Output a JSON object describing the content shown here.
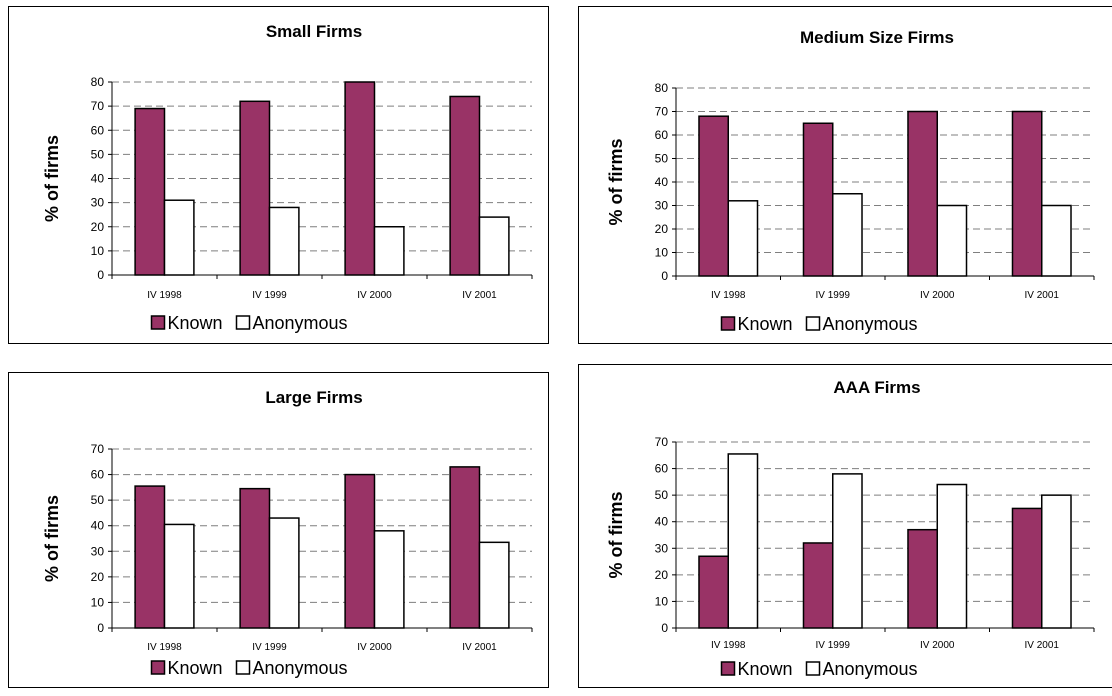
{
  "colors": {
    "known": "#993366",
    "anonymous": "#ffffff",
    "grid": "#7f7f7f",
    "axis": "#000000"
  },
  "chart_data": [
    {
      "type": "bar",
      "title": "Small Firms",
      "ylabel": "% of firms",
      "xlabel": "",
      "categories": [
        "IV 1998",
        "IV 1999",
        "IV 2000",
        "IV 2001"
      ],
      "ylim": [
        0,
        80
      ],
      "yticks": [
        0,
        10,
        20,
        30,
        40,
        50,
        60,
        70,
        80
      ],
      "grid": true,
      "legend": "bottom",
      "series": [
        {
          "name": "Known",
          "values": [
            69,
            72,
            80,
            74
          ]
        },
        {
          "name": "Anonymous",
          "values": [
            31,
            28,
            20,
            24
          ]
        }
      ]
    },
    {
      "type": "bar",
      "title": "Medium Size Firms",
      "ylabel": "% of firms",
      "xlabel": "",
      "categories": [
        "IV 1998",
        "IV 1999",
        "IV 2000",
        "IV 2001"
      ],
      "ylim": [
        0,
        80
      ],
      "yticks": [
        0,
        10,
        20,
        30,
        40,
        50,
        60,
        70,
        80
      ],
      "grid": true,
      "legend": "bottom",
      "series": [
        {
          "name": "Known",
          "values": [
            68,
            65,
            70,
            70
          ]
        },
        {
          "name": "Anonymous",
          "values": [
            32,
            35,
            30,
            30
          ]
        }
      ]
    },
    {
      "type": "bar",
      "title": "Large Firms",
      "ylabel": "% of firms",
      "xlabel": "",
      "categories": [
        "IV 1998",
        "IV 1999",
        "IV 2000",
        "IV 2001"
      ],
      "ylim": [
        0,
        70
      ],
      "yticks": [
        0,
        10,
        20,
        30,
        40,
        50,
        60,
        70
      ],
      "grid": true,
      "legend": "bottom",
      "series": [
        {
          "name": "Known",
          "values": [
            55.5,
            54.5,
            60,
            63
          ]
        },
        {
          "name": "Anonymous",
          "values": [
            40.5,
            43,
            38,
            33.5
          ]
        }
      ]
    },
    {
      "type": "bar",
      "title": "AAA Firms",
      "ylabel": "% of firms",
      "xlabel": "",
      "categories": [
        "IV 1998",
        "IV 1999",
        "IV 2000",
        "IV 2001"
      ],
      "ylim": [
        0,
        70
      ],
      "yticks": [
        0,
        10,
        20,
        30,
        40,
        50,
        60,
        70
      ],
      "grid": true,
      "legend": "bottom",
      "series": [
        {
          "name": "Known",
          "values": [
            27,
            32,
            37,
            45
          ]
        },
        {
          "name": "Anonymous",
          "values": [
            65.5,
            58,
            54,
            50
          ]
        }
      ]
    }
  ]
}
